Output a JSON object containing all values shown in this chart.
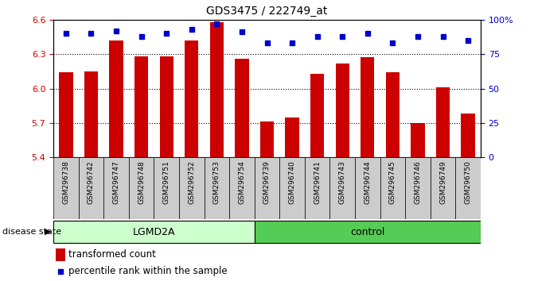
{
  "title": "GDS3475 / 222749_at",
  "samples": [
    "GSM296738",
    "GSM296742",
    "GSM296747",
    "GSM296748",
    "GSM296751",
    "GSM296752",
    "GSM296753",
    "GSM296754",
    "GSM296739",
    "GSM296740",
    "GSM296741",
    "GSM296743",
    "GSM296744",
    "GSM296745",
    "GSM296746",
    "GSM296749",
    "GSM296750"
  ],
  "bar_values": [
    6.14,
    6.15,
    6.42,
    6.28,
    6.28,
    6.42,
    6.58,
    6.26,
    5.71,
    5.75,
    6.13,
    6.22,
    6.27,
    6.14,
    5.7,
    6.01,
    5.78
  ],
  "percentile_values": [
    90,
    90,
    92,
    88,
    90,
    93,
    97,
    91,
    83,
    83,
    88,
    88,
    90,
    83,
    88,
    88,
    85
  ],
  "ylim": [
    5.4,
    6.6
  ],
  "yticks": [
    5.4,
    5.7,
    6.0,
    6.3,
    6.6
  ],
  "right_ylim": [
    0,
    100
  ],
  "right_yticks": [
    0,
    25,
    50,
    75,
    100
  ],
  "right_yticklabels": [
    "0",
    "25",
    "50",
    "75",
    "100%"
  ],
  "bar_color": "#cc0000",
  "dot_color": "#0000cc",
  "groups": [
    {
      "label": "LGMD2A",
      "start": 0,
      "end": 7,
      "color": "#ccffcc"
    },
    {
      "label": "control",
      "start": 8,
      "end": 16,
      "color": "#55cc55"
    }
  ],
  "disease_state_label": "disease state",
  "legend_bar_label": "transformed count",
  "legend_dot_label": "percentile rank within the sample",
  "background_color": "#ffffff",
  "axis_color": "#cc0000",
  "right_axis_color": "#0000cc",
  "xtick_bg_color": "#cccccc"
}
